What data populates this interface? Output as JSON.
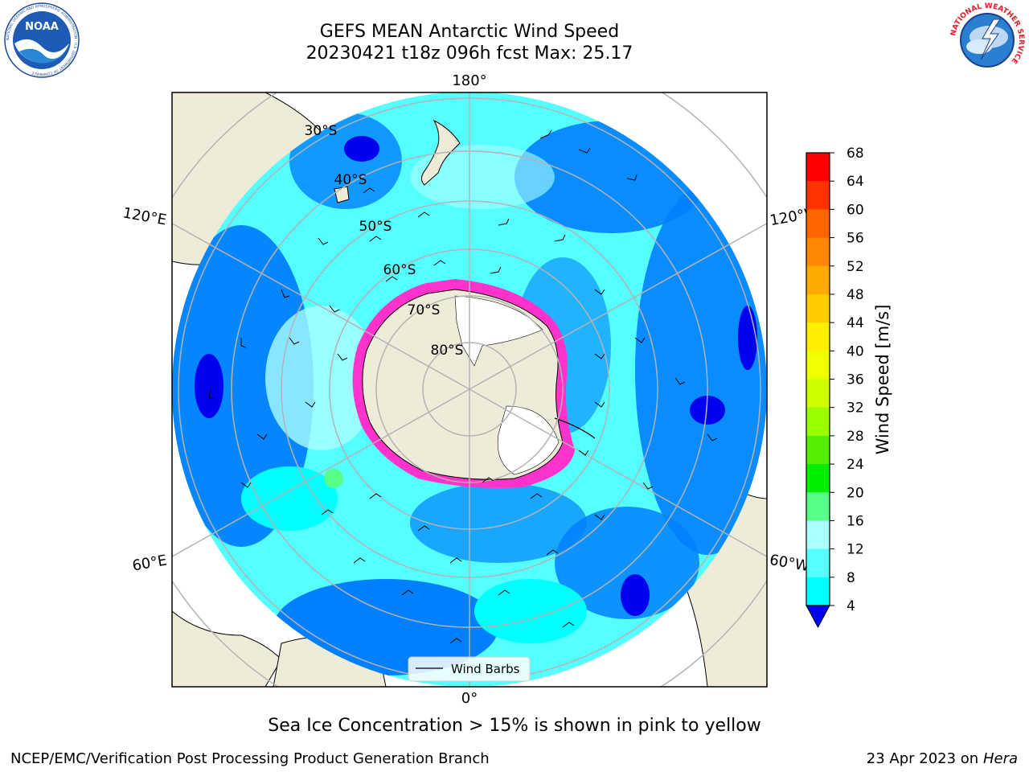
{
  "header": {
    "title_line1": "GEFS MEAN Antarctic Wind Speed",
    "title_line2": "20230421 t18z 096h fcst   Max: 25.17"
  },
  "logos": {
    "noaa_label": "NOAA",
    "noaa_ring_text": "NATIONAL OCEANIC AND ATMOSPHERIC ADMINISTRATION · U.S. DEPARTMENT OF COMMERCE",
    "nws_ring_text": "NATIONAL WEATHER SERVICE"
  },
  "map": {
    "projection": "south-polar-stereographic",
    "longitude_labels": {
      "top": "180°",
      "upper_left": "120°E",
      "upper_right": "120°W",
      "lower_left": "60°E",
      "lower_right": "60°W",
      "bottom": "0°"
    },
    "latitude_labels": [
      "30°S",
      "40°S",
      "50°S",
      "60°S",
      "70°S",
      "80°S"
    ],
    "legend_label": "Wind Barbs",
    "colors": {
      "land": "#eeecd9",
      "ice_edge": "#ff33cc",
      "grid": "#b3b3b3"
    }
  },
  "colorbar": {
    "label": "Wind Speed [m/s]",
    "ticks": [
      "68",
      "64",
      "60",
      "56",
      "52",
      "48",
      "44",
      "40",
      "36",
      "32",
      "28",
      "24",
      "20",
      "16",
      "12",
      "8",
      "4"
    ],
    "colors": [
      "#ff0000",
      "#ff3300",
      "#ff6600",
      "#ff8800",
      "#ffaa00",
      "#ffcc00",
      "#ffee00",
      "#eeff00",
      "#ccff00",
      "#99ff00",
      "#55ee00",
      "#00ee00",
      "#55ff88",
      "#aaffff",
      "#55ffff",
      "#00ffff",
      "#0080ff"
    ],
    "extend_color": "#0000ee"
  },
  "caption": "Sea Ice Concentration > 15% is shown in pink to yellow",
  "footer": {
    "left": "NCEP/EMC/Verification Post Processing Product Generation Branch",
    "right_prefix": "23 Apr 2023 on ",
    "right_machine": "Hera"
  }
}
